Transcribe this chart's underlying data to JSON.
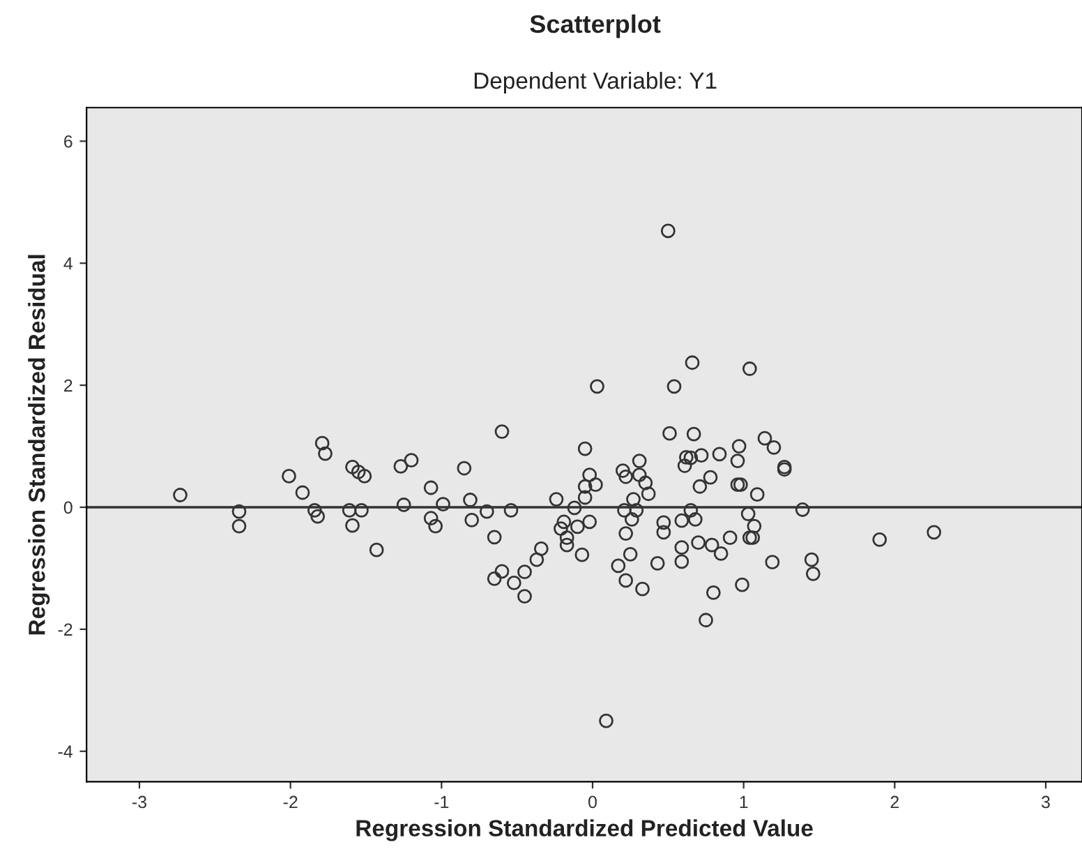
{
  "chart_data": {
    "type": "scatter",
    "title": "Scatterplot",
    "subtitle": "Dependent Variable: Y1",
    "xlabel": "Regression Standardized Predicted Value",
    "ylabel": "Regression Standardized Residual",
    "xlim": [
      -3.35,
      3.24
    ],
    "ylim": [
      -4.5,
      6.55
    ],
    "xticks": [
      -3,
      -2,
      -1,
      0,
      1,
      2,
      3
    ],
    "yticks": [
      -4,
      -2,
      0,
      2,
      4,
      6
    ],
    "grid": false,
    "marker": "circle",
    "ref_lines": [
      {
        "axis": "y",
        "value": 0,
        "color": "#333333"
      }
    ],
    "series": [
      {
        "color": "#333333",
        "x": [
          -2.73,
          -2.34,
          -2.34,
          -1.79,
          -1.77,
          -2.01,
          -1.92,
          -1.84,
          -1.82,
          -1.59,
          -1.55,
          -1.51,
          -1.61,
          -1.53,
          -1.59,
          -1.43,
          -1.27,
          -1.2,
          -1.25,
          -1.07,
          -0.99,
          -1.07,
          -1.04,
          -0.85,
          -0.81,
          -0.8,
          -0.7,
          -0.54,
          -0.65,
          -0.6,
          -0.6,
          -0.65,
          -0.52,
          -0.45,
          -0.45,
          -0.37,
          -0.34,
          -0.24,
          -0.21,
          -0.19,
          -0.17,
          -0.17,
          -0.12,
          -0.1,
          -0.07,
          -0.05,
          -0.02,
          -0.05,
          -0.05,
          0.02,
          -0.02,
          0.03,
          0.2,
          0.22,
          0.21,
          0.22,
          0.27,
          0.26,
          0.25,
          0.17,
          0.22,
          0.31,
          0.31,
          0.35,
          0.37,
          0.29,
          0.33,
          0.47,
          0.47,
          0.43,
          0.54,
          0.51,
          0.59,
          0.59,
          0.59,
          0.61,
          0.65,
          0.5,
          0.09,
          0.66,
          1.04,
          0.67,
          0.62,
          0.65,
          0.72,
          0.84,
          0.78,
          0.71,
          0.97,
          0.96,
          0.96,
          0.98,
          1.09,
          1.14,
          1.2,
          1.27,
          1.27,
          1.39,
          0.68,
          1.03,
          1.07,
          1.04,
          1.06,
          0.91,
          0.7,
          0.79,
          0.85,
          1.19,
          1.45,
          1.46,
          0.8,
          0.99,
          0.75,
          1.9,
          2.26
        ],
        "values": [
          0.2,
          -0.07,
          -0.31,
          1.05,
          0.88,
          0.51,
          0.24,
          -0.05,
          -0.15,
          0.66,
          0.58,
          0.51,
          -0.05,
          -0.05,
          -0.3,
          -0.7,
          0.67,
          0.77,
          0.04,
          0.32,
          0.05,
          -0.18,
          -0.31,
          0.64,
          0.12,
          -0.21,
          -0.07,
          -0.05,
          -0.49,
          1.24,
          -1.05,
          -1.17,
          -1.24,
          -1.06,
          -1.46,
          -0.86,
          -0.68,
          0.13,
          -0.35,
          -0.24,
          -0.5,
          -0.62,
          -0.01,
          -0.32,
          -0.78,
          0.96,
          0.53,
          0.34,
          0.16,
          0.37,
          -0.24,
          1.98,
          0.6,
          0.5,
          -0.05,
          -0.43,
          0.13,
          -0.2,
          -0.77,
          -0.96,
          -1.2,
          0.76,
          0.53,
          0.4,
          0.22,
          -0.05,
          -1.34,
          -0.25,
          -0.41,
          -0.92,
          1.98,
          1.21,
          -0.66,
          -0.89,
          -0.22,
          0.68,
          -0.05,
          4.53,
          -3.5,
          2.37,
          2.27,
          1.2,
          0.82,
          0.81,
          0.85,
          0.87,
          0.49,
          0.34,
          1.0,
          0.76,
          0.37,
          0.37,
          0.21,
          1.13,
          0.98,
          0.66,
          0.62,
          -0.04,
          -0.2,
          -0.11,
          -0.31,
          -0.5,
          -0.5,
          -0.5,
          -0.58,
          -0.62,
          -0.76,
          -0.9,
          -0.86,
          -1.09,
          -1.4,
          -1.27,
          -1.85,
          -0.53,
          -0.41
        ]
      }
    ]
  }
}
